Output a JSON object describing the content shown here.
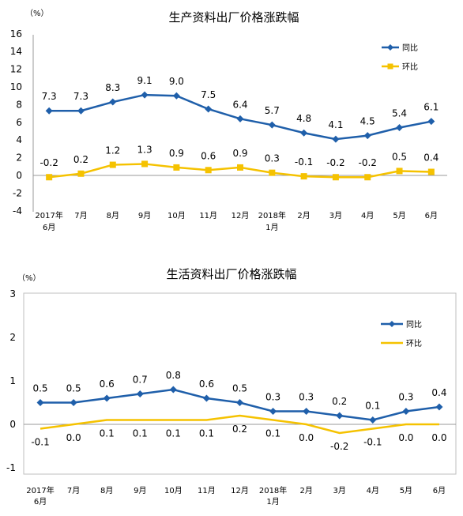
{
  "chart_data": [
    {
      "type": "line",
      "title": "生产资料出厂价格涨跌幅",
      "unit": "（%）",
      "x": [
        [
          "2017年",
          "6月"
        ],
        [
          "7月"
        ],
        [
          "8月"
        ],
        [
          "9月"
        ],
        [
          "10月"
        ],
        [
          "11月"
        ],
        [
          "12月"
        ],
        [
          "2018年",
          "1月"
        ],
        [
          "2月"
        ],
        [
          "3月"
        ],
        [
          "4月"
        ],
        [
          "5月"
        ],
        [
          "6月"
        ]
      ],
      "yticks": [
        "16",
        "14",
        "12",
        "10",
        "8",
        "6",
        "4",
        "2",
        "0",
        "-2",
        "-4"
      ],
      "ylim": [
        -4,
        16
      ],
      "grid": false,
      "legend_position": "top-right",
      "series": [
        {
          "name": "同比",
          "color": "#1F5FAA",
          "marker": "diamond",
          "label_pos": "above",
          "values": [
            7.3,
            7.3,
            8.3,
            9.1,
            9.0,
            7.5,
            6.4,
            5.7,
            4.8,
            4.1,
            4.5,
            5.4,
            6.1
          ],
          "labels": [
            "7.3",
            "7.3",
            "8.3",
            "9.1",
            "9.0",
            "7.5",
            "6.4",
            "5.7",
            "4.8",
            "4.1",
            "4.5",
            "5.4",
            "6.1"
          ]
        },
        {
          "name": "环比",
          "color": "#F5C200",
          "marker": "square",
          "label_pos": "above",
          "values": [
            -0.2,
            0.2,
            1.2,
            1.3,
            0.9,
            0.6,
            0.9,
            0.3,
            -0.1,
            -0.2,
            -0.2,
            0.5,
            0.4
          ],
          "labels": [
            "-0.2",
            "0.2",
            "1.2",
            "1.3",
            "0.9",
            "0.6",
            "0.9",
            "0.3",
            "-0.1",
            "-0.2",
            "-0.2",
            "0.5",
            "0.4"
          ]
        }
      ]
    },
    {
      "type": "line",
      "title": "生活资料出厂价格涨跌幅",
      "unit": "（%）",
      "x": [
        [
          "2017年",
          "6月"
        ],
        [
          "7月"
        ],
        [
          "8月"
        ],
        [
          "9月"
        ],
        [
          "10月"
        ],
        [
          "11月"
        ],
        [
          "12月"
        ],
        [
          "2018年",
          "1月"
        ],
        [
          "2月"
        ],
        [
          "3月"
        ],
        [
          "4月"
        ],
        [
          "5月"
        ],
        [
          "6月"
        ]
      ],
      "yticks": [
        "3",
        "2",
        "1",
        "0",
        "-1"
      ],
      "ylim": [
        -1,
        3
      ],
      "grid": false,
      "legend_position": "top-right",
      "series": [
        {
          "name": "同比",
          "color": "#1F5FAA",
          "marker": "diamond",
          "label_pos": "above",
          "values": [
            0.5,
            0.5,
            0.6,
            0.7,
            0.8,
            0.6,
            0.5,
            0.3,
            0.3,
            0.2,
            0.1,
            0.3,
            0.4
          ],
          "labels": [
            "0.5",
            "0.5",
            "0.6",
            "0.7",
            "0.8",
            "0.6",
            "0.5",
            "0.3",
            "0.3",
            "0.2",
            "0.1",
            "0.3",
            "0.4"
          ]
        },
        {
          "name": "环比",
          "color": "#F5C200",
          "marker": "none",
          "label_pos": "below",
          "values": [
            -0.1,
            0.0,
            0.1,
            0.1,
            0.1,
            0.1,
            0.2,
            0.1,
            0.0,
            -0.2,
            -0.1,
            0.0,
            0.0
          ],
          "labels": [
            "-0.1",
            "0.0",
            "0.1",
            "0.1",
            "0.1",
            "0.1",
            "0.2",
            "0.1",
            "0.0",
            "-0.2",
            "-0.1",
            "0.0",
            "0.0"
          ]
        }
      ]
    }
  ]
}
